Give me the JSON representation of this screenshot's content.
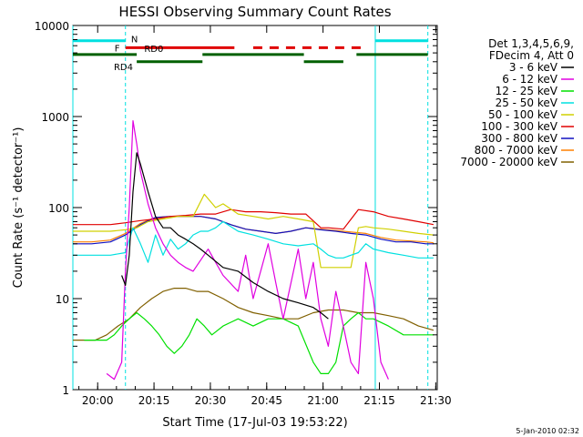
{
  "chart_data": {
    "type": "line",
    "title": "HESSI Observing Summary Count Rates",
    "xlabel": "Start Time (17-Jul-03 19:53:22)",
    "ylabel": "Count Rate (s⁻¹ detector⁻¹)",
    "x_units": "minutes since 19:53:22 UT",
    "xlim": [
      0,
      97
    ],
    "ylim": [
      1,
      10000
    ],
    "yscale": "log",
    "x_ticks": [
      {
        "label": "20:00",
        "value": 6.6
      },
      {
        "label": "20:15",
        "value": 21.6
      },
      {
        "label": "20:30",
        "value": 36.6
      },
      {
        "label": "20:45",
        "value": 51.6
      },
      {
        "label": "21:00",
        "value": 66.6
      },
      {
        "label": "21:15",
        "value": 81.6
      },
      {
        "label": "21:30",
        "value": 96.6
      }
    ],
    "y_ticks": [
      {
        "label": "1",
        "value": 1
      },
      {
        "label": "10",
        "value": 10
      },
      {
        "label": "100",
        "value": 100
      },
      {
        "label": "1000",
        "value": 1000
      },
      {
        "label": "10000",
        "value": 10000
      }
    ],
    "legend_header": [
      "Det 1,3,4,5,6,9,",
      "FDecim 4, Att 0"
    ],
    "legend_position": "right",
    "timestamp": "5-Jan-2010 02:32",
    "series": [
      {
        "name": "3 - 6 keV",
        "color": "#000000",
        "x": [
          13,
          14,
          15,
          16,
          17,
          18,
          20,
          22,
          24,
          26,
          28,
          30,
          32,
          34,
          36,
          40,
          44,
          48,
          52,
          56,
          60,
          64,
          66,
          68
        ],
        "y": [
          18,
          14,
          30,
          150,
          400,
          300,
          150,
          80,
          60,
          60,
          50,
          45,
          40,
          35,
          30,
          22,
          20,
          15,
          12,
          10,
          9,
          8,
          7,
          6
        ]
      },
      {
        "name": "6 - 12 keV",
        "color": "#e000e0",
        "x": [
          9,
          11,
          13,
          14,
          15,
          16,
          17,
          18,
          20,
          22,
          24,
          26,
          28,
          30,
          32,
          36,
          38,
          40,
          44,
          46,
          48,
          52,
          54,
          56,
          60,
          62,
          64,
          66,
          68,
          70,
          72,
          74,
          76,
          78,
          80,
          82,
          84
        ],
        "y": [
          1.5,
          1.3,
          2,
          20,
          100,
          900,
          500,
          250,
          110,
          60,
          40,
          30,
          25,
          22,
          20,
          35,
          25,
          18,
          12,
          30,
          10,
          40,
          15,
          6,
          35,
          10,
          25,
          6,
          3,
          12,
          5,
          2,
          1.5,
          25,
          10,
          2,
          1.3
        ]
      },
      {
        "name": "12 - 25 keV",
        "color": "#00e000",
        "x": [
          3,
          6,
          9,
          11,
          13,
          15,
          17,
          19,
          21,
          23,
          25,
          27,
          29,
          31,
          33,
          35,
          37,
          40,
          44,
          48,
          52,
          56,
          60,
          64,
          66,
          68,
          70,
          72,
          74,
          76,
          78,
          80,
          84,
          88,
          92,
          96
        ],
        "y": [
          3.5,
          3.5,
          3.5,
          4,
          5,
          6,
          7,
          6,
          5,
          4,
          3,
          2.5,
          3,
          4,
          6,
          5,
          4,
          5,
          6,
          5,
          6,
          6,
          5,
          2,
          1.5,
          1.5,
          2,
          5,
          6,
          7,
          6,
          6,
          5,
          4,
          4,
          4
        ]
      },
      {
        "name": "25 - 50 keV",
        "color": "#00e0e0",
        "x": [
          0,
          5,
          10,
          14,
          16,
          18,
          20,
          22,
          24,
          26,
          28,
          30,
          32,
          34,
          36,
          38,
          40,
          44,
          48,
          52,
          56,
          60,
          64,
          66,
          68,
          70,
          72,
          74,
          76,
          78,
          80,
          84,
          88,
          92,
          96
        ],
        "y": [
          30,
          30,
          30,
          32,
          60,
          40,
          25,
          50,
          30,
          45,
          35,
          40,
          50,
          55,
          55,
          60,
          70,
          55,
          50,
          45,
          40,
          38,
          40,
          35,
          30,
          28,
          28,
          30,
          32,
          40,
          35,
          32,
          30,
          28,
          28
        ]
      },
      {
        "name": "50 - 100 keV",
        "color": "#d0d000",
        "x": [
          0,
          5,
          10,
          14,
          17,
          20,
          24,
          28,
          32,
          35,
          38,
          40,
          44,
          48,
          52,
          56,
          60,
          64,
          66,
          68,
          70,
          74,
          76,
          78,
          80,
          84,
          88,
          92,
          96
        ],
        "y": [
          55,
          55,
          55,
          57,
          60,
          70,
          75,
          80,
          80,
          140,
          100,
          110,
          85,
          80,
          75,
          80,
          75,
          70,
          22,
          22,
          22,
          22,
          60,
          62,
          60,
          58,
          55,
          52,
          50
        ]
      },
      {
        "name": "100 - 300 keV",
        "color": "#e00000",
        "x": [
          0,
          5,
          10,
          14,
          18,
          22,
          26,
          30,
          34,
          38,
          42,
          46,
          50,
          54,
          58,
          62,
          66,
          68,
          72,
          76,
          80,
          84,
          88,
          92,
          96
        ],
        "y": [
          65,
          65,
          65,
          68,
          72,
          75,
          80,
          82,
          85,
          85,
          95,
          90,
          90,
          88,
          85,
          85,
          60,
          60,
          58,
          95,
          90,
          80,
          75,
          70,
          65
        ]
      },
      {
        "name": "300 - 800 keV",
        "color": "#1010c0",
        "x": [
          0,
          5,
          10,
          14,
          18,
          22,
          26,
          30,
          34,
          38,
          42,
          46,
          50,
          54,
          58,
          62,
          66,
          70,
          74,
          78,
          82,
          86,
          90,
          94,
          96
        ],
        "y": [
          40,
          40,
          42,
          50,
          65,
          78,
          80,
          80,
          80,
          75,
          65,
          58,
          55,
          52,
          55,
          60,
          57,
          55,
          52,
          50,
          45,
          42,
          42,
          40,
          40
        ]
      },
      {
        "name": "800 - 7000 keV",
        "color": "#ff8000",
        "x": [
          0,
          5,
          10,
          14,
          18,
          22,
          26,
          30,
          34,
          38,
          42,
          46,
          50,
          54,
          58,
          62,
          66,
          70,
          74,
          78,
          82,
          86,
          90,
          94,
          96
        ],
        "y": [
          42,
          42,
          44,
          52,
          67,
          78,
          80,
          80,
          80,
          75,
          65,
          58,
          55,
          52,
          55,
          60,
          58,
          56,
          54,
          52,
          47,
          44,
          43,
          42,
          41
        ]
      },
      {
        "name": "7000 - 20000 keV",
        "color": "#806000",
        "x": [
          0,
          3,
          6,
          9,
          12,
          15,
          18,
          21,
          24,
          27,
          30,
          33,
          36,
          40,
          44,
          48,
          52,
          56,
          60,
          64,
          68,
          72,
          76,
          80,
          84,
          88,
          92,
          96
        ],
        "y": [
          3.5,
          3.5,
          3.5,
          4,
          5,
          6,
          8,
          10,
          12,
          13,
          13,
          12,
          12,
          10,
          8,
          7,
          6.5,
          6,
          6,
          7,
          7.5,
          7.5,
          7,
          7,
          6.5,
          6,
          5,
          4.5
        ]
      }
    ],
    "flags": [
      {
        "label": "N",
        "color": "#00e0e0",
        "y_pos": 6800,
        "segments": [
          {
            "x1": 0,
            "x2": 14,
            "dash": false
          },
          {
            "x1": 80.5,
            "x2": 94.5,
            "dash": false
          }
        ]
      },
      {
        "label": "F",
        "color": "#e00000",
        "y_pos": 5700,
        "segments": [
          {
            "x1": 14,
            "x2": 43,
            "dash": false
          },
          {
            "x1": 48,
            "x2": 78,
            "dash": true
          }
        ]
      },
      {
        "label": "RD0",
        "color": "#006000",
        "y_pos": 4800,
        "segments": [
          {
            "x1": 0,
            "x2": 17,
            "dash": false
          },
          {
            "x1": 34.5,
            "x2": 61.5,
            "dash": false
          },
          {
            "x1": 75.5,
            "x2": 94.5,
            "dash": false
          }
        ]
      },
      {
        "label": "RD4",
        "color": "#006000",
        "y_pos": 4000,
        "segments": [
          {
            "x1": 17,
            "x2": 34.5,
            "dash": false
          },
          {
            "x1": 61.5,
            "x2": 72,
            "dash": false
          }
        ]
      }
    ],
    "vlines": [
      {
        "x": 0,
        "color": "#00e0e0",
        "dash": false
      },
      {
        "x": 14,
        "color": "#00e0e0",
        "dash": true
      },
      {
        "x": 80.5,
        "color": "#00e0e0",
        "dash": false
      },
      {
        "x": 94.5,
        "color": "#00e0e0",
        "dash": true
      }
    ]
  }
}
